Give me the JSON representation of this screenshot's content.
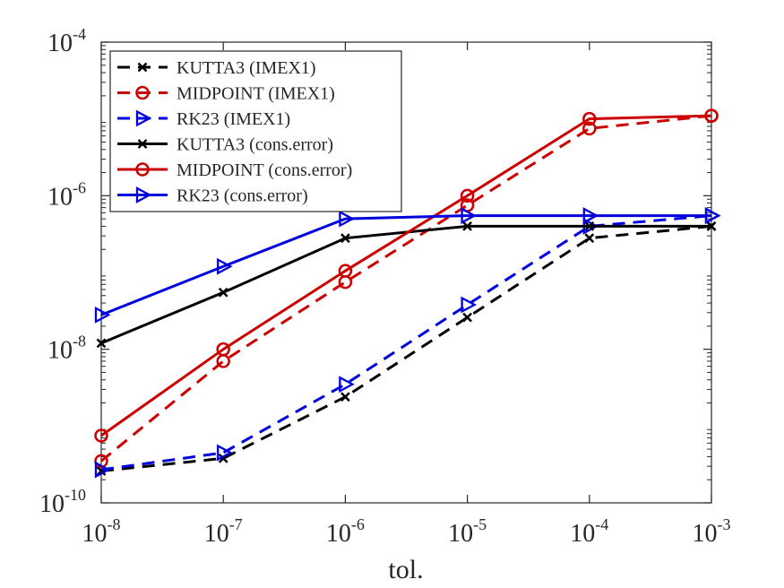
{
  "chart_data": {
    "type": "line",
    "xlabel": "tol.",
    "xscale": "log",
    "yscale": "log",
    "xlim": [
      1e-08,
      0.001
    ],
    "ylim": [
      1e-10,
      0.0001
    ],
    "grid": false,
    "legend_position": "top-left",
    "x_ticks": [
      {
        "value": 1e-08,
        "base": "10",
        "exp": "-8"
      },
      {
        "value": 1e-07,
        "base": "10",
        "exp": "-7"
      },
      {
        "value": 1e-06,
        "base": "10",
        "exp": "-6"
      },
      {
        "value": 1e-05,
        "base": "10",
        "exp": "-5"
      },
      {
        "value": 0.0001,
        "base": "10",
        "exp": "-4"
      },
      {
        "value": 0.001,
        "base": "10",
        "exp": "-3"
      }
    ],
    "y_ticks": [
      {
        "value": 1e-10,
        "base": "10",
        "exp": "-10"
      },
      {
        "value": 1e-08,
        "base": "10",
        "exp": "-8"
      },
      {
        "value": 1e-06,
        "base": "10",
        "exp": "-6"
      },
      {
        "value": 0.0001,
        "base": "10",
        "exp": "-4"
      }
    ],
    "x": [
      1e-08,
      1e-07,
      1e-06,
      1e-05,
      0.0001,
      0.001
    ],
    "series": [
      {
        "name": "KUTTA3 (IMEX1)",
        "color": "#000000",
        "dash": true,
        "marker": "x",
        "values": [
          2.6e-10,
          3.8e-10,
          2.4e-09,
          2.6e-08,
          2.8e-07,
          4e-07
        ]
      },
      {
        "name": "MIDPOINT (IMEX1)",
        "color": "#cc0000",
        "dash": true,
        "marker": "circle",
        "values": [
          3.5e-10,
          7e-09,
          7.5e-08,
          7.5e-07,
          7.5e-06,
          1.1e-05
        ]
      },
      {
        "name": "RK23 (IMEX1)",
        "color": "#0000dd",
        "dash": true,
        "marker": "triangle-right",
        "values": [
          2.7e-10,
          4.5e-10,
          3.5e-09,
          3.8e-08,
          4e-07,
          5.5e-07
        ]
      },
      {
        "name": "KUTTA3 (cons.error)",
        "color": "#000000",
        "dash": false,
        "marker": "x",
        "values": [
          1.2e-08,
          5.5e-08,
          2.8e-07,
          4e-07,
          4e-07,
          4e-07
        ]
      },
      {
        "name": "MIDPOINT (cons.error)",
        "color": "#cc0000",
        "dash": false,
        "marker": "circle",
        "values": [
          7.5e-10,
          1e-08,
          1.05e-07,
          1e-06,
          1e-05,
          1.1e-05
        ]
      },
      {
        "name": "RK23 (cons.error)",
        "color": "#0000dd",
        "dash": false,
        "marker": "triangle-right",
        "values": [
          2.8e-08,
          1.2e-07,
          5e-07,
          5.5e-07,
          5.5e-07,
          5.5e-07
        ]
      }
    ]
  }
}
